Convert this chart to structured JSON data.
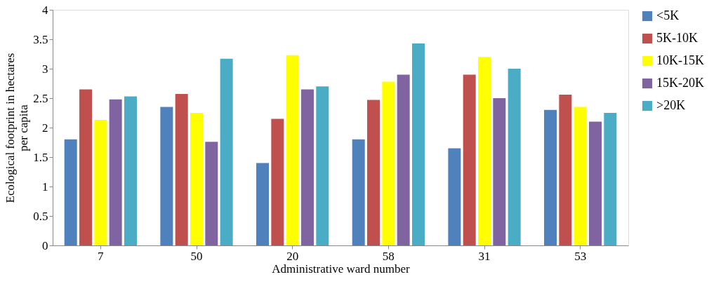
{
  "chart_data": {
    "type": "bar",
    "xlabel": "Administrative ward number",
    "ylabel": "Ecological footprint in hectares per capita",
    "categories": [
      "7",
      "50",
      "20",
      "58",
      "31",
      "53"
    ],
    "series": [
      {
        "name": "<5K",
        "color": "#4f81bd",
        "values": [
          1.8,
          2.35,
          1.4,
          1.8,
          1.65,
          2.3
        ]
      },
      {
        "name": "5K-10K",
        "color": "#c0504d",
        "values": [
          2.65,
          2.57,
          2.15,
          2.47,
          2.9,
          2.56
        ]
      },
      {
        "name": "10K-15K",
        "color": "#ffff00",
        "values": [
          2.13,
          2.25,
          3.23,
          2.78,
          3.2,
          2.35
        ]
      },
      {
        "name": "15K-20K",
        "color": "#8064a2",
        "values": [
          2.48,
          1.76,
          2.65,
          2.9,
          2.5,
          2.1
        ]
      },
      {
        "name": ">20K",
        "color": "#4bacc6",
        "values": [
          2.53,
          3.17,
          2.7,
          3.43,
          3.0,
          2.25
        ]
      }
    ],
    "ylim": [
      0,
      4
    ],
    "yticks": [
      0,
      0.5,
      1,
      1.5,
      2,
      2.5,
      3,
      3.5,
      4
    ],
    "grid": false,
    "legend": "right"
  }
}
